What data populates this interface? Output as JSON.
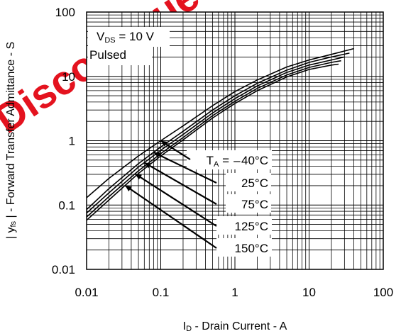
{
  "chart_data": {
    "type": "line",
    "xlabel": "I",
    "xlabel_sub": "D",
    "xlabel_rest": " - Drain Current - A",
    "ylabel_pre": "| y",
    "ylabel_sub": "fs",
    "ylabel_rest": " | - Forward Transfer Admittance - S",
    "x_scale": "log",
    "y_scale": "log",
    "xlim": [
      0.01,
      100
    ],
    "ylim": [
      0.01,
      100
    ],
    "x_ticks": [
      "0.01",
      "0.1",
      "1",
      "10",
      "100"
    ],
    "y_ticks": [
      "100",
      "10",
      "1",
      "0.1",
      "0.01"
    ],
    "grid": true,
    "conditions": {
      "vds_pre": "V",
      "vds_sub": "DS",
      "vds_rest": " = 10 V",
      "pulsed": "Pulsed"
    },
    "ta_pre": "T",
    "ta_sub": "A",
    "series": [
      {
        "name": "T_A = −40°C",
        "label_text": " =  – 40°C",
        "x": [
          0.01,
          0.02,
          0.05,
          0.1,
          0.2,
          0.5,
          1,
          2,
          5,
          10,
          20,
          40
        ],
        "y": [
          0.13,
          0.26,
          0.58,
          1.0,
          1.7,
          3.5,
          5.8,
          8.8,
          14,
          18,
          22,
          27
        ]
      },
      {
        "name": "25°C",
        "label_text": "25°C",
        "x": [
          0.01,
          0.02,
          0.05,
          0.1,
          0.2,
          0.5,
          1,
          2,
          5,
          10,
          20,
          35
        ],
        "y": [
          0.085,
          0.18,
          0.44,
          0.8,
          1.4,
          3.0,
          5.0,
          7.8,
          12.5,
          16.5,
          20,
          23
        ]
      },
      {
        "name": "75°C",
        "label_text": "75°C",
        "x": [
          0.01,
          0.02,
          0.05,
          0.1,
          0.2,
          0.5,
          1,
          2,
          5,
          10,
          20,
          30
        ],
        "y": [
          0.075,
          0.155,
          0.39,
          0.71,
          1.25,
          2.7,
          4.5,
          7.1,
          11.5,
          15,
          18,
          20
        ]
      },
      {
        "name": "125°C",
        "label_text": "125°C",
        "x": [
          0.01,
          0.02,
          0.05,
          0.1,
          0.2,
          0.5,
          1,
          2,
          5,
          10,
          20,
          27
        ],
        "y": [
          0.065,
          0.135,
          0.34,
          0.63,
          1.12,
          2.45,
          4.1,
          6.5,
          10.5,
          13.8,
          16.5,
          17.5
        ]
      },
      {
        "name": "150°C",
        "label_text": "150°C",
        "x": [
          0.01,
          0.02,
          0.05,
          0.1,
          0.2,
          0.5,
          1,
          2,
          5,
          10,
          20,
          25
        ],
        "y": [
          0.058,
          0.12,
          0.31,
          0.58,
          1.03,
          2.25,
          3.8,
          6.0,
          9.8,
          12.8,
          15,
          15.5
        ]
      }
    ],
    "colors": {
      "line": "#000000",
      "grid": "#000000",
      "background": "#ffffff"
    }
  },
  "watermark": "Discontinued Product"
}
